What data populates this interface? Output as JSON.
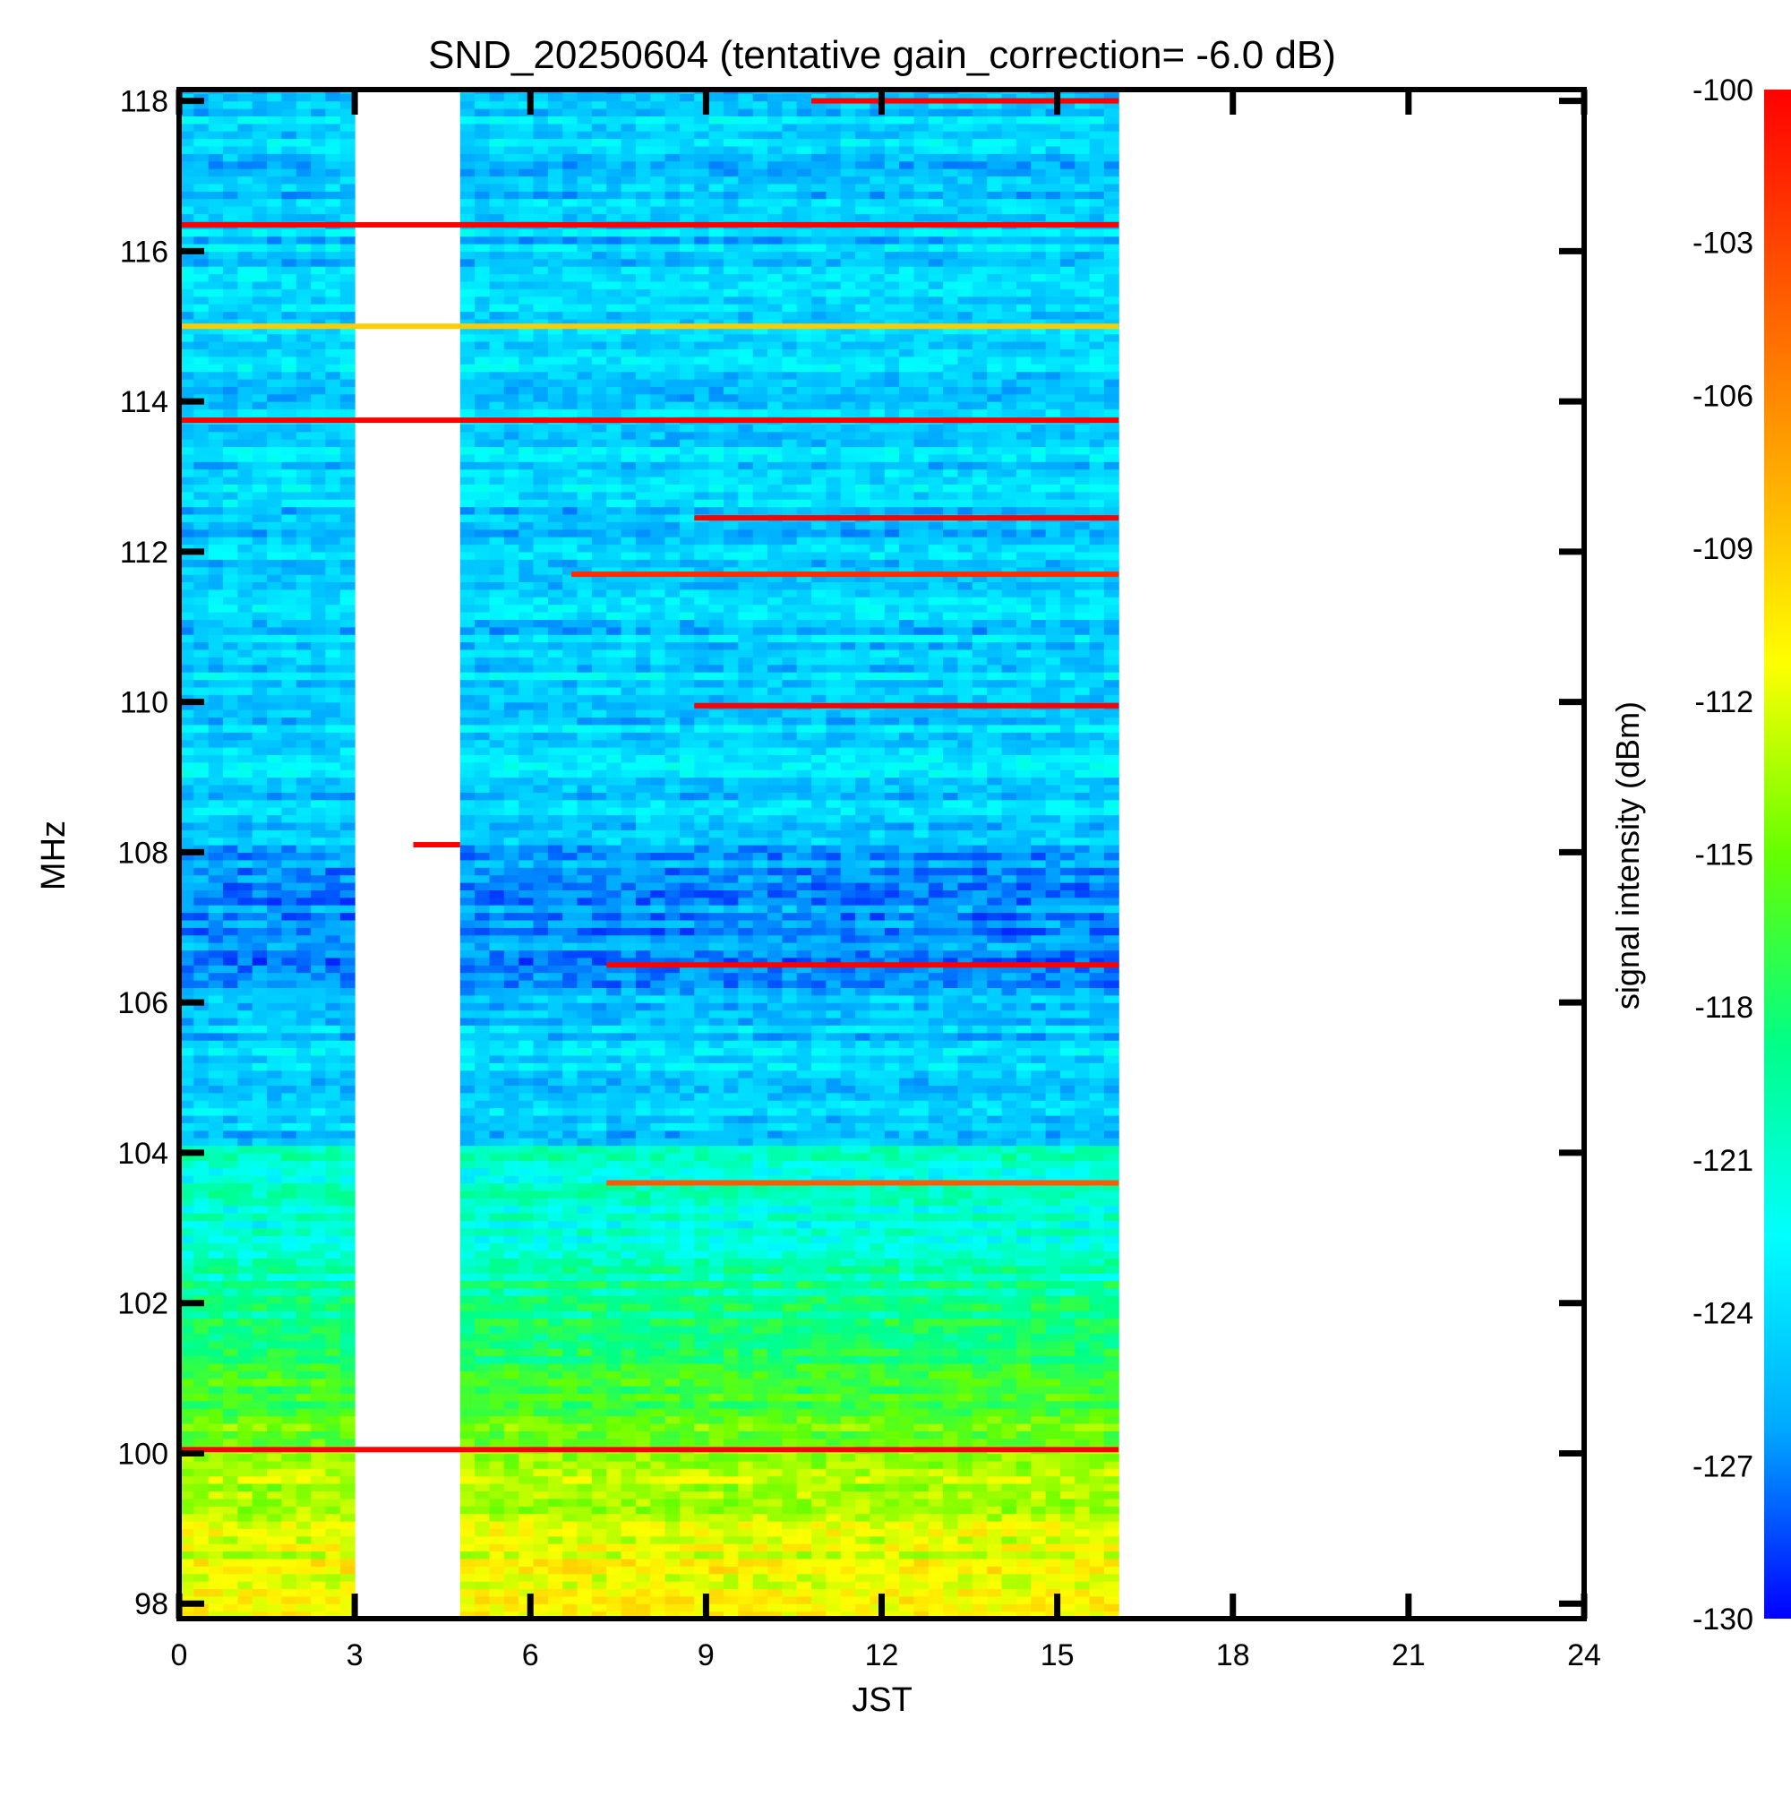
{
  "chart_data": {
    "type": "heatmap",
    "title": "SND_20250604 (tentative gain_correction= -6.0 dB)",
    "xlabel": "JST",
    "ylabel": "MHz",
    "colorbar_label": "signal intensity (dBm)",
    "xlim": [
      0,
      24
    ],
    "ylim": [
      97.8,
      118.15
    ],
    "x_ticks": [
      "0",
      "3",
      "6",
      "9",
      "12",
      "15",
      "18",
      "21",
      "24"
    ],
    "y_ticks": [
      "98",
      "100",
      "102",
      "104",
      "106",
      "108",
      "110",
      "112",
      "114",
      "116",
      "118"
    ],
    "colorbar_range": [
      -130,
      -100
    ],
    "colorbar_ticks": [
      "-100",
      "-103",
      "-106",
      "-109",
      "-112",
      "-115",
      "-118",
      "-121",
      "-124",
      "-127",
      "-130"
    ],
    "colormap": [
      "#0000ff",
      "#00aaff",
      "#00ffff",
      "#00ff88",
      "#66ff00",
      "#ffff00",
      "#ffaa00",
      "#ff5500",
      "#ff0000"
    ],
    "data_segments": [
      {
        "x_start": 0.0,
        "x_end": 3.0
      },
      {
        "x_start": 4.8,
        "x_end": 16.05
      }
    ],
    "strong_signals": [
      {
        "freq": 116.35,
        "x_start": 0.0,
        "x_end": 16.05,
        "level": -100
      },
      {
        "freq": 113.75,
        "x_start": 0.0,
        "x_end": 16.05,
        "level": -100
      },
      {
        "freq": 112.45,
        "x_start": 8.8,
        "x_end": 16.05,
        "level": -100
      },
      {
        "freq": 111.7,
        "x_start": 6.7,
        "x_end": 16.05,
        "level": -102
      },
      {
        "freq": 109.95,
        "x_start": 8.8,
        "x_end": 16.05,
        "level": -100
      },
      {
        "freq": 118.0,
        "x_start": 10.8,
        "x_end": 16.05,
        "level": -100
      },
      {
        "freq": 108.1,
        "x_start": 4.0,
        "x_end": 4.8,
        "level": -100
      },
      {
        "freq": 106.5,
        "x_start": 7.3,
        "x_end": 16.05,
        "level": -100
      },
      {
        "freq": 103.6,
        "x_start": 7.3,
        "x_end": 16.05,
        "level": -104
      },
      {
        "freq": 100.05,
        "x_start": 0.0,
        "x_end": 16.05,
        "level": -100
      },
      {
        "freq": 115.0,
        "x_start": 0.0,
        "x_end": 16.05,
        "level": -109
      }
    ]
  }
}
